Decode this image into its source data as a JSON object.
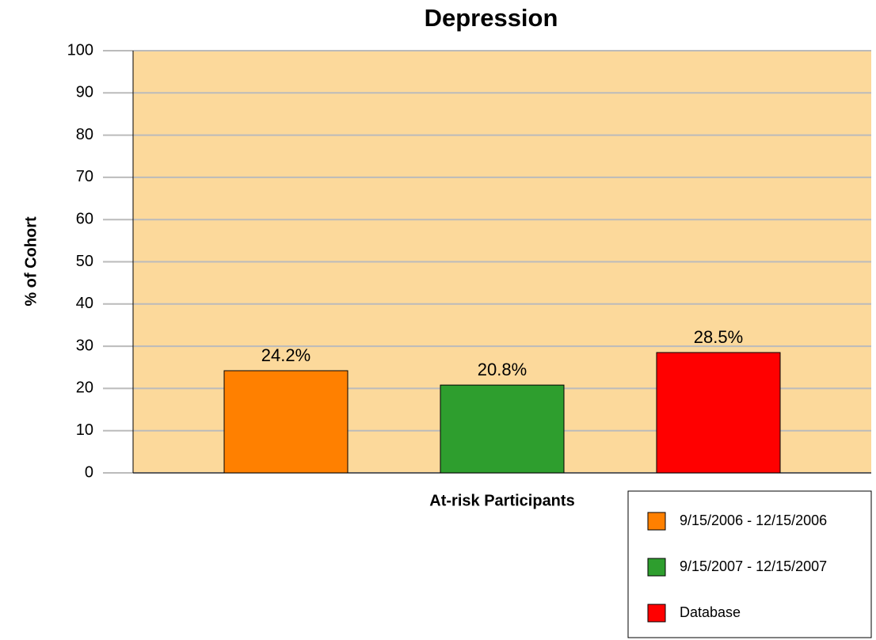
{
  "chart_data": {
    "type": "bar",
    "title": "Depression",
    "y_label": "% of Cohort",
    "categories": [
      "At-risk Participants"
    ],
    "series": [
      {
        "name": "9/15/2006 - 12/15/2006",
        "color": "#ff8000",
        "values": [
          24.2
        ],
        "value_labels": [
          "24.2%"
        ]
      },
      {
        "name": "9/15/2007 - 12/15/2007",
        "color": "#2e9e2e",
        "values": [
          20.8
        ],
        "value_labels": [
          "20.8%"
        ]
      },
      {
        "name": "Database",
        "color": "#ff0000",
        "values": [
          28.5
        ],
        "value_labels": [
          "28.5%"
        ]
      }
    ],
    "ylim": [
      0,
      100
    ],
    "yticks": [
      0,
      10,
      20,
      30,
      40,
      50,
      60,
      70,
      80,
      90,
      100
    ],
    "grid": true,
    "plot_background": "#fcd99b",
    "legend": "bottom right"
  }
}
